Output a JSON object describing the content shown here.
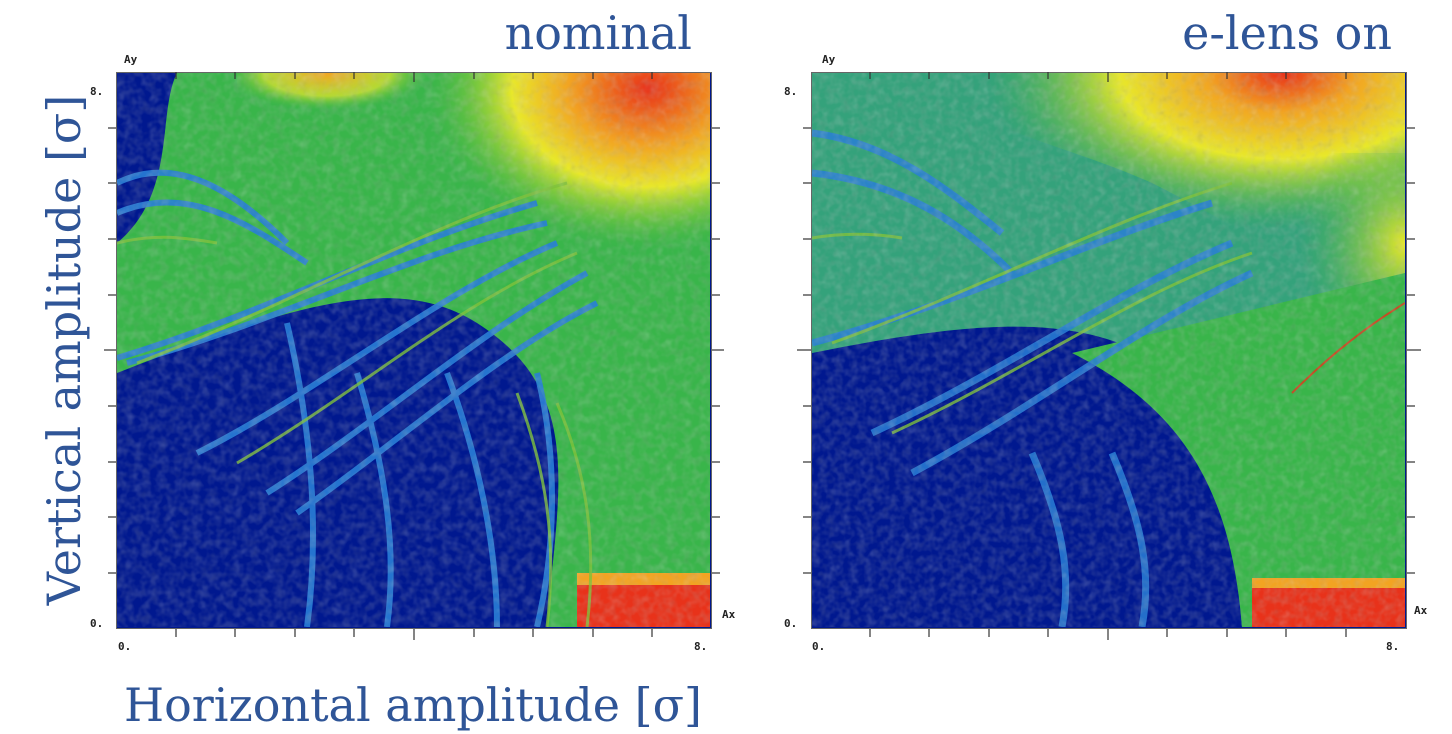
{
  "figure": {
    "y_axis_title": "Vertical amplitude [σ]",
    "x_axis_title": "Horizontal amplitude [σ]"
  },
  "chart_data": [
    {
      "type": "heatmap",
      "title": "nominal",
      "xlabel": "Ax",
      "ylabel": "Ay",
      "xlim": [
        0,
        8
      ],
      "ylim": [
        0,
        8
      ],
      "x_tick_labels": [
        "0.",
        "8."
      ],
      "y_tick_labels": [
        "0.",
        "8."
      ],
      "colors": {
        "low": "#00188f",
        "mid_low": "#2a7fd6",
        "mid": "#39b54a",
        "mid_high": "#e8e82a",
        "high": "#e8321a"
      }
    },
    {
      "type": "heatmap",
      "title": "e-lens on",
      "xlabel": "Ax",
      "ylabel": "Ay",
      "xlim": [
        0,
        8
      ],
      "ylim": [
        0,
        8
      ],
      "x_tick_labels": [
        "0.",
        "8."
      ],
      "y_tick_labels": [
        "0.",
        "8."
      ],
      "colors": {
        "low": "#00188f",
        "mid_low": "#2a7fd6",
        "mid": "#39b54a",
        "mid_high": "#e8e82a",
        "high": "#e8321a"
      }
    }
  ]
}
